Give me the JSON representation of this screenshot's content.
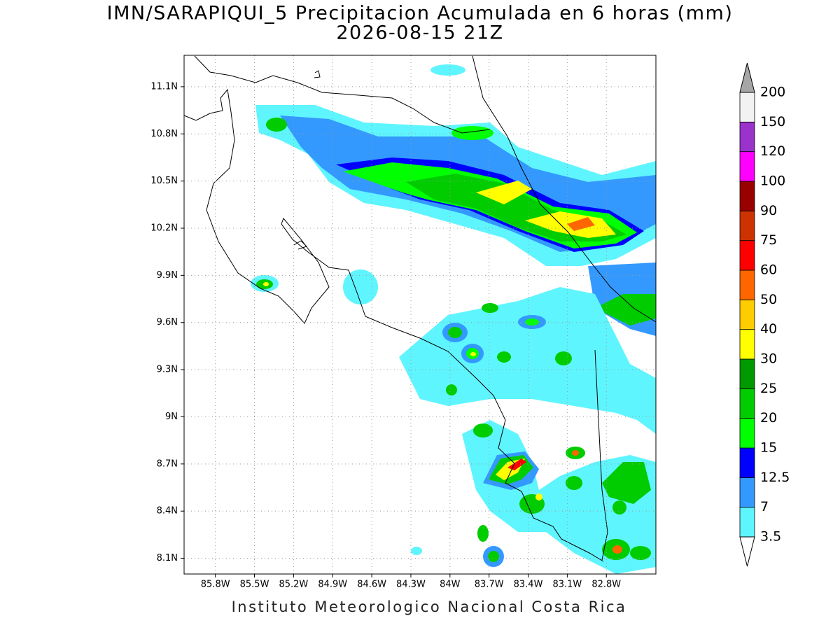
{
  "map": {
    "title": "IMN/SARAPIQUI_5 Precipitacion Acumulada en 6 horas (mm)",
    "subtitle": "2026-08-15 21Z",
    "footer": "Instituto Meteorologico Nacional Costa Rica",
    "xlim": [
      -86.04,
      -82.42
    ],
    "ylim": [
      8.0,
      11.3
    ],
    "grid": true,
    "xticks": [
      {
        "value": -85.8,
        "label": "85.8W"
      },
      {
        "value": -85.5,
        "label": "85.5W"
      },
      {
        "value": -85.2,
        "label": "85.2W"
      },
      {
        "value": -84.9,
        "label": "84.9W"
      },
      {
        "value": -84.6,
        "label": "84.6W"
      },
      {
        "value": -84.3,
        "label": "84.3W"
      },
      {
        "value": -84.0,
        "label": "84W"
      },
      {
        "value": -83.7,
        "label": "83.7W"
      },
      {
        "value": -83.4,
        "label": "83.4W"
      },
      {
        "value": -83.1,
        "label": "83.1W"
      },
      {
        "value": -82.8,
        "label": "82.8W"
      }
    ],
    "yticks": [
      {
        "value": 8.1,
        "label": "8.1N"
      },
      {
        "value": 8.4,
        "label": "8.4N"
      },
      {
        "value": 8.7,
        "label": "8.7N"
      },
      {
        "value": 9.0,
        "label": "9N"
      },
      {
        "value": 9.3,
        "label": "9.3N"
      },
      {
        "value": 9.6,
        "label": "9.6N"
      },
      {
        "value": 9.9,
        "label": "9.9N"
      },
      {
        "value": 10.2,
        "label": "10.2N"
      },
      {
        "value": 10.5,
        "label": "10.5N"
      },
      {
        "value": 10.8,
        "label": "10.8N"
      },
      {
        "value": 11.1,
        "label": "11.1N"
      }
    ],
    "colorbar": {
      "levels": [
        3.5,
        7,
        12.5,
        15,
        20,
        25,
        30,
        40,
        50,
        60,
        75,
        90,
        100,
        120,
        150,
        200
      ],
      "colors": [
        "#5ff5ff",
        "#3399ff",
        "#0000ff",
        "#00ff00",
        "#00cc00",
        "#009900",
        "#ffff00",
        "#ffcc00",
        "#ff6600",
        "#ff0000",
        "#cc3300",
        "#990000",
        "#ff00ff",
        "#9933cc",
        "#f2f2f2"
      ],
      "under_color": "#ffffff",
      "over_color": "#a6a6a6"
    }
  }
}
